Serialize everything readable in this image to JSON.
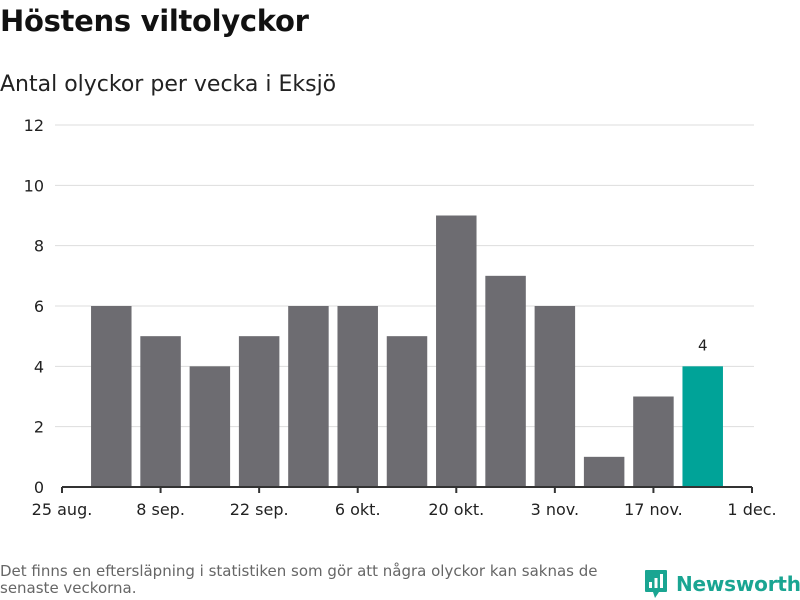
{
  "title": "Höstens viltolyckor",
  "subtitle": "Antal olyckor per vecka i Eksjö",
  "footnote": "Det finns en eftersläpning i statistiken som gör att några olyckor kan saknas de senaste veckorna.",
  "brand": {
    "name": "Newsworthy",
    "icon": "newsworthy-logo-icon"
  },
  "colors": {
    "bar": "#6d6c71",
    "highlight": "#00a398",
    "grid": "#dddddd",
    "axis": "#333333"
  },
  "chart_data": {
    "type": "bar",
    "title": "",
    "xlabel": "",
    "ylabel": "",
    "ylim": [
      0,
      12
    ],
    "yticks": [
      0,
      2,
      4,
      6,
      8,
      10,
      12
    ],
    "grid": true,
    "xlim": [
      "2024-08-25",
      "2024-12-01"
    ],
    "x_tick_dates": [
      "2024-08-25",
      "2024-09-08",
      "2024-09-22",
      "2024-10-06",
      "2024-10-20",
      "2024-11-03",
      "2024-11-17",
      "2024-12-01"
    ],
    "x_tick_labels": [
      "25 aug.",
      "8 sep.",
      "22 sep.",
      "6 okt.",
      "20 okt.",
      "3 nov.",
      "17 nov.",
      "1 dec."
    ],
    "weeks": [
      "2024-09-01",
      "2024-09-08",
      "2024-09-15",
      "2024-09-22",
      "2024-09-29",
      "2024-10-06",
      "2024-10-13",
      "2024-10-20",
      "2024-10-27",
      "2024-11-03",
      "2024-11-10",
      "2024-11-17",
      "2024-11-24"
    ],
    "values": [
      6,
      5,
      4,
      5,
      6,
      6,
      5,
      9,
      7,
      6,
      1,
      3,
      4
    ],
    "highlight_index": 12,
    "data_labels": [
      null,
      null,
      null,
      null,
      null,
      null,
      null,
      null,
      null,
      null,
      null,
      null,
      "4"
    ]
  }
}
